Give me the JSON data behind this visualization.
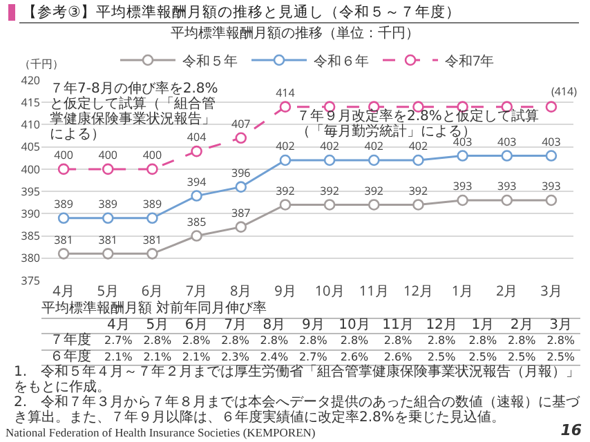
{
  "chart_data": {
    "type": "line",
    "title": "【参考③】平均標準報酬月額の推移と見通し（令和５～７年度）",
    "subtitle": "平均標準報酬月額の推移（単位：千円）",
    "ylabel": "（千円）",
    "categories": [
      "4月",
      "5月",
      "6月",
      "7月",
      "8月",
      "9月",
      "10月",
      "11月",
      "12月",
      "1月",
      "2月",
      "3月"
    ],
    "ylim": [
      375,
      420
    ],
    "yticks": [
      375,
      380,
      385,
      390,
      395,
      400,
      405,
      410,
      415,
      420
    ],
    "grid": "y",
    "legend": "top",
    "marker": "circle",
    "line_style": "solid",
    "series": [
      {
        "name": "令和５年",
        "color": "#a39d9c",
        "values": [
          381,
          381,
          381,
          385,
          387,
          392,
          392,
          392,
          392,
          393,
          393,
          393
        ],
        "value_labels": [
          "381",
          "381",
          "381",
          "385",
          "387",
          "392",
          "392",
          "392",
          "392",
          "393",
          "393",
          "393"
        ]
      },
      {
        "name": "令和６年",
        "color": "#6f9fd3",
        "values": [
          389,
          389,
          389,
          394,
          396,
          402,
          402,
          402,
          402,
          403,
          403,
          403
        ],
        "value_labels": [
          "389",
          "389",
          "389",
          "394",
          "396",
          "402",
          "402",
          "402",
          "402",
          "403",
          "403",
          "403"
        ]
      },
      {
        "name": "令和7年",
        "color": "#e0509a",
        "line_style": "dashed",
        "values": [
          400,
          400,
          400,
          404,
          407,
          414,
          414,
          414,
          414,
          414,
          414,
          414
        ],
        "value_labels": [
          "400",
          "400",
          "400",
          "404",
          "407",
          "414",
          null,
          null,
          null,
          null,
          null,
          null
        ]
      }
    ],
    "annotations": [
      "７年7-8月の伸び率を2.8%と仮定して試算（「組合管掌健康保険事業状況報告」による）",
      "７年９月改定率を2.8%と仮定して試算（「毎月勤労統計」による）",
      "平均標準報酬月額 対前年同月伸び率",
      "4月 5月 6月 7月 8月 9月 10月 11月 12月 1月 2月 3月",
      "７年度 2.7% 2.8% 2.8% 2.8% 2.8% 2.8% 2.8% 2.8% 2.8% 2.8% 2.8% 2.8%",
      "６年度 2.1% 2.1% 2.1% 2.3% 2.4% 2.7% 2.6% 2.6% 2.5% 2.5% 2.5% 2.5%",
      "1.　令和５年４月～７年２月までは厚生労働省「組合管掌健康保険事業状況報告（月報）」をもとに作成。",
      "2.　令和７年３月から７年８月までは本会へデータ提供のあった組合の数値（速報）に基づき算出。また、７年９月以降は、６年度実績値に改定率2.8%を乗じた見込値。",
      "National Federation of Health Insurance Societies (KEMPOREN)",
      "16",
      {
        "text": "(414)",
        "x": "3月",
        "y": 414
      }
    ]
  }
}
